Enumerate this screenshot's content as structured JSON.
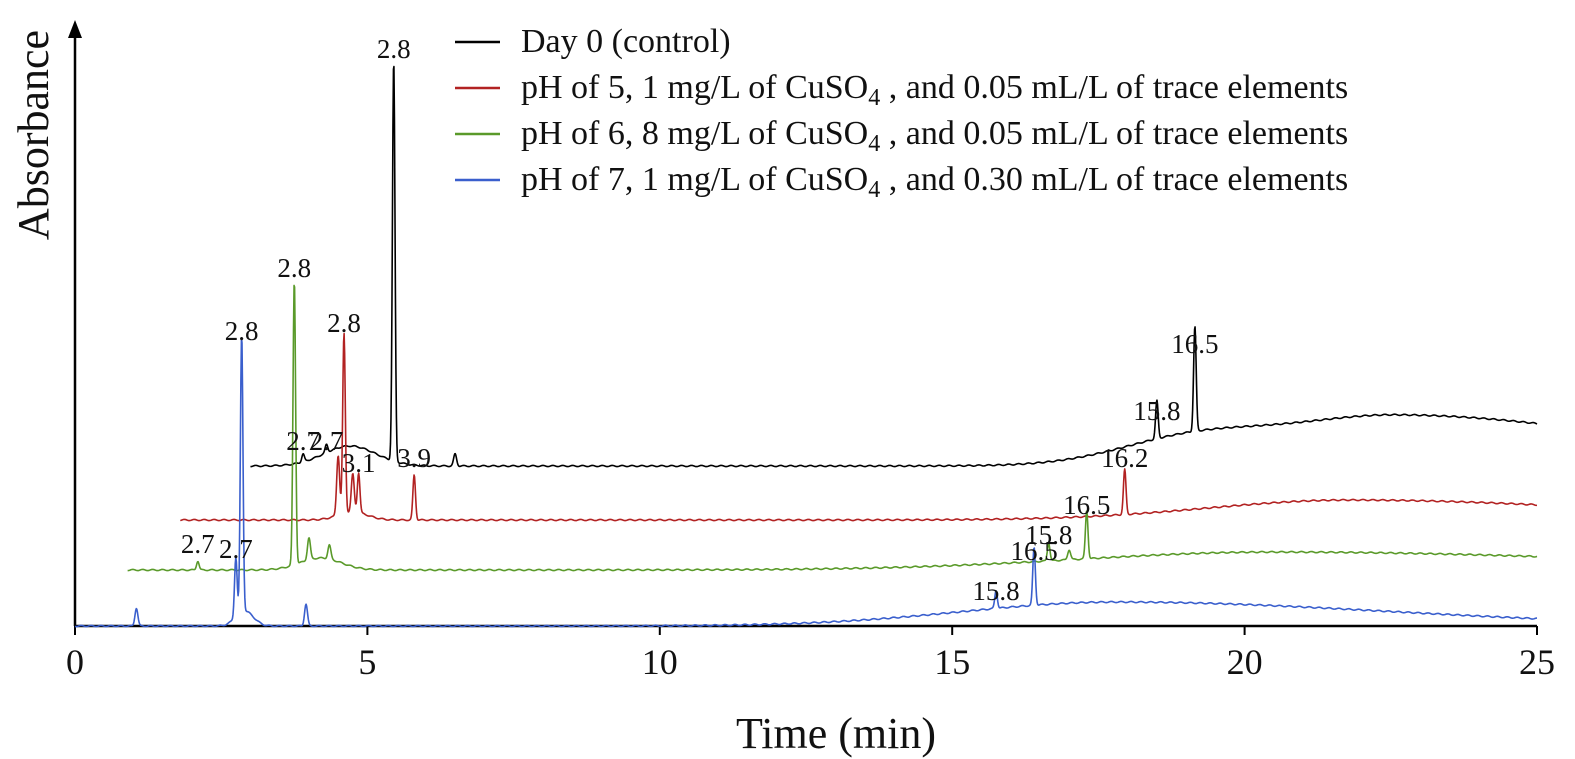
{
  "chart_data": {
    "type": "line",
    "title": "",
    "xlabel": "Time (min)",
    "ylabel": "Absorbance",
    "xlim": [
      0,
      25
    ],
    "x_ticks": [
      "0",
      "5",
      "10",
      "15",
      "20",
      "25"
    ],
    "y_ticks": [],
    "y_scale": "arbitrary (traces vertically offset)",
    "grid": false,
    "legend_position": "top-right",
    "series": [
      {
        "name": "Day 0 (control)",
        "legend_label": {
          "pre": "Day 0 (control)",
          "sub": "",
          "post": ""
        },
        "color": "#000000",
        "peaks": [
          {
            "label": "2.7",
            "time_axis": 3.9
          },
          {
            "label": "2.7",
            "time_axis": 4.3
          },
          {
            "label": "2.8",
            "time_axis": 5.45
          },
          {
            "label": "15.8",
            "time_axis": 18.5
          },
          {
            "label": "16.5",
            "time_axis": 19.15
          }
        ]
      },
      {
        "name": "pH of 5, 1 mg/L of CuSO4 , and 0.05 mL/L of trace elements",
        "legend_label": {
          "pre": "pH of 5, 1 mg/L of CuSO",
          "sub": "4",
          "post": " , and 0.05 mL/L of trace elements"
        },
        "color": "#b22222",
        "peaks": [
          {
            "label": "2.8",
            "time_axis": 4.6
          },
          {
            "label": "3.1",
            "time_axis": 4.85
          },
          {
            "label": "3.9",
            "time_axis": 5.8
          },
          {
            "label": "16.2",
            "time_axis": 17.95
          }
        ]
      },
      {
        "name": "pH of 6, 8 mg/L of CuSO4 , and 0.05 mL/L of trace elements",
        "legend_label": {
          "pre": "pH of 6, 8 mg/L of CuSO",
          "sub": "4",
          "post": " , and 0.05 mL/L of trace elements"
        },
        "color": "#5a9a2a",
        "peaks": [
          {
            "label": "2.7",
            "time_axis": 2.1
          },
          {
            "label": "2.8",
            "time_axis": 3.75
          },
          {
            "label": "15.8",
            "time_axis": 16.65
          },
          {
            "label": "16.5",
            "time_axis": 17.3
          }
        ]
      },
      {
        "name": "pH of 7, 1 mg/L of CuSO4 , and 0.30 mL/L of trace elements",
        "legend_label": {
          "pre": "pH of 7, 1 mg/L of CuSO",
          "sub": "4",
          "post": " , and 0.30 mL/L of trace elements"
        },
        "color": "#3a5fcd",
        "peaks": [
          {
            "label": "2.7",
            "time_axis": 2.75
          },
          {
            "label": "2.8",
            "time_axis": 2.85
          },
          {
            "label": "15.8",
            "time_axis": 15.75
          },
          {
            "label": "16.5",
            "time_axis": 16.4
          }
        ]
      }
    ]
  }
}
